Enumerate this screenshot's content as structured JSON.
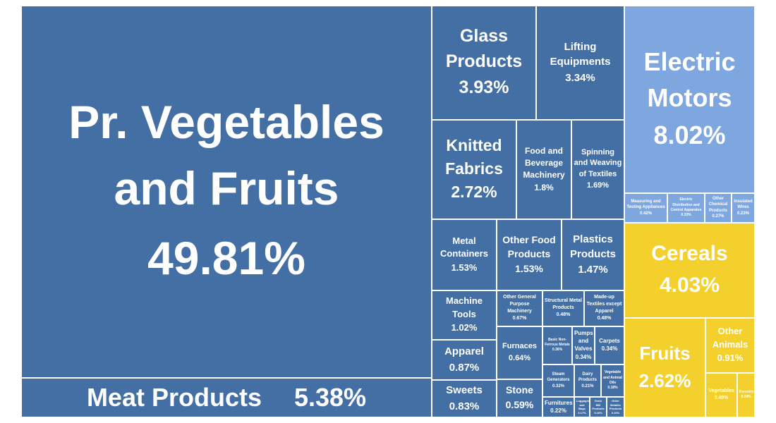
{
  "colors": {
    "dark_blue": "#436fa4",
    "light_blue": "#7fa7df",
    "yellow": "#f3d02c"
  },
  "chart_data": {
    "type": "treemap",
    "title": "",
    "groups": [
      {
        "color": "#436fa4",
        "items": [
          {
            "label": "Pr. Vegetables and Fruits",
            "value": 49.81,
            "display": "49.81%"
          },
          {
            "label": "Meat Products",
            "value": 5.38,
            "display": "5.38%"
          },
          {
            "label": "Glass Products",
            "value": 3.93,
            "display": "3.93%"
          },
          {
            "label": "Lifting Equipments",
            "value": 3.34,
            "display": "3.34%"
          },
          {
            "label": "Knitted Fabrics",
            "value": 2.72,
            "display": "2.72%"
          },
          {
            "label": "Food and Beverage Machinery",
            "value": 1.8,
            "display": "1.8%"
          },
          {
            "label": "Spinning and Weaving of Textiles",
            "value": 1.69,
            "display": "1.69%"
          },
          {
            "label": "Metal Containers",
            "value": 1.53,
            "display": "1.53%"
          },
          {
            "label": "Other Food Products",
            "value": 1.53,
            "display": "1.53%"
          },
          {
            "label": "Plastics Products",
            "value": 1.47,
            "display": "1.47%"
          },
          {
            "label": "Machine Tools",
            "value": 1.02,
            "display": "1.02%"
          },
          {
            "label": "Other General Purpose Machinery",
            "value": 0.67,
            "display": "0.67%"
          },
          {
            "label": "Structural Metal Products",
            "value": 0.48,
            "display": "0.48%"
          },
          {
            "label": "Made-up Textiles except Apparel",
            "value": 0.48,
            "display": "0.48%"
          },
          {
            "label": "Basic Non-Ferrous Metals",
            "value": 0.36,
            "display": "0.36%"
          },
          {
            "label": "Pumps and Valves",
            "value": 0.34,
            "display": "0.34%"
          },
          {
            "label": "Carpets",
            "value": 0.34,
            "display": "0.34%"
          },
          {
            "label": "Apparel",
            "value": 0.87,
            "display": "0.87%"
          },
          {
            "label": "Furnaces",
            "value": 0.64,
            "display": "0.64%"
          },
          {
            "label": "Steam Generators",
            "value": 0.32,
            "display": "0.32%"
          },
          {
            "label": "Dairy Products",
            "value": 0.21,
            "display": "0.21%"
          },
          {
            "label": "Vegetable and Animal Oils",
            "value": 0.18,
            "display": "0.18%"
          },
          {
            "label": "Sweets",
            "value": 0.83,
            "display": "0.83%"
          },
          {
            "label": "Stone",
            "value": 0.59,
            "display": "0.59%"
          },
          {
            "label": "Furnitures",
            "value": 0.22,
            "display": "0.22%"
          },
          {
            "label": "Luggages and Bags",
            "value": 0.17,
            "display": "0.17%"
          },
          {
            "label": "Grain Mill Products",
            "value": 0.16,
            "display": "0.16%"
          },
          {
            "label": "Other Metallic Products",
            "value": 0.16,
            "display": "0.16%"
          }
        ]
      },
      {
        "color": "#7fa7df",
        "items": [
          {
            "label": "Electric Motors",
            "value": 8.02,
            "display": "8.02%"
          },
          {
            "label": "Measuring and Testing Appliances",
            "value": 0.42,
            "display": "0.42%"
          },
          {
            "label": "Electric Distribution and Control Apparatus",
            "value": 0.33,
            "display": "0.33%"
          },
          {
            "label": "Other Chemical Products",
            "value": 0.27,
            "display": "0.27%"
          },
          {
            "label": "Insulated Wires",
            "value": 0.23,
            "display": "0.23%"
          }
        ]
      },
      {
        "color": "#f3d02c",
        "items": [
          {
            "label": "Cereals",
            "value": 4.03,
            "display": "4.03%"
          },
          {
            "label": "Fruits",
            "value": 2.62,
            "display": "2.62%"
          },
          {
            "label": "Other Animals",
            "value": 0.91,
            "display": "0.91%"
          },
          {
            "label": "Vegetables",
            "value": 0.49,
            "display": "0.49%"
          },
          {
            "label": "Forestry",
            "value": 0.24,
            "display": "0.24%"
          }
        ]
      }
    ]
  }
}
